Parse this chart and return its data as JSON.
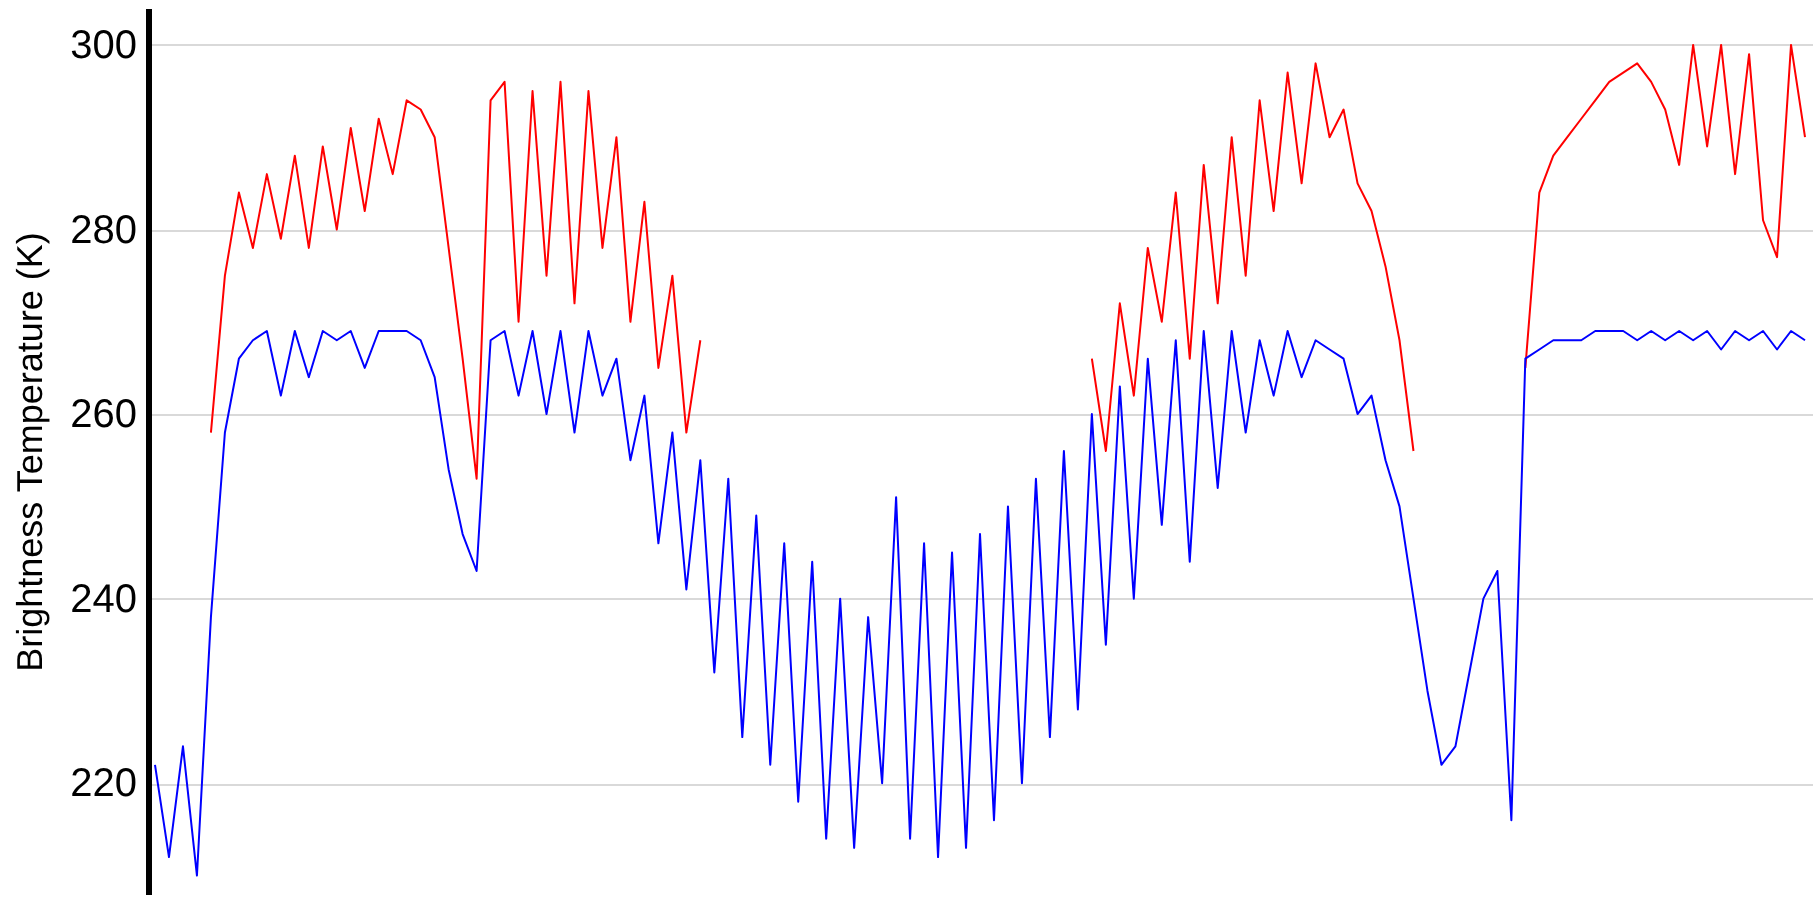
{
  "chart_data": {
    "type": "line",
    "ylabel": "Brightness Temperature (K)",
    "categories": [
      null,
      null,
      null,
      null,
      null,
      null,
      null,
      null,
      null,
      null,
      null,
      null,
      null,
      null,
      null,
      null,
      null,
      null,
      null,
      null,
      null,
      null,
      null,
      null,
      null,
      null,
      null,
      null,
      null,
      null,
      null,
      null,
      null,
      null,
      null,
      null,
      null,
      null,
      null,
      null,
      null,
      null,
      null,
      null,
      null,
      null,
      null,
      null,
      null,
      null,
      null,
      null,
      null,
      null,
      null,
      null,
      null,
      null,
      null,
      null,
      null,
      null,
      null,
      null,
      null,
      null,
      null,
      null,
      null,
      null,
      null,
      null,
      null,
      null,
      null,
      null,
      null,
      null,
      null,
      null,
      null,
      null,
      null,
      null,
      null,
      null,
      null,
      null,
      null,
      null,
      null,
      null,
      null,
      null,
      null,
      null,
      null,
      null,
      null,
      null,
      null,
      null,
      null,
      null,
      null,
      null,
      null,
      null,
      null,
      null,
      null,
      null,
      null,
      null,
      null,
      null,
      null,
      null,
      null
    ],
    "series": [
      {
        "color": "#ff0000",
        "values": [
          null,
          null,
          null,
          null,
          258,
          275,
          284,
          278,
          286,
          279,
          288,
          278,
          289,
          280,
          291,
          282,
          292,
          286,
          294,
          293,
          290,
          278,
          266,
          253,
          294,
          296,
          270,
          295,
          275,
          296,
          272,
          295,
          278,
          290,
          270,
          283,
          265,
          275,
          258,
          268,
          null,
          null,
          null,
          null,
          null,
          null,
          null,
          null,
          null,
          null,
          null,
          null,
          null,
          null,
          null,
          null,
          null,
          null,
          null,
          null,
          null,
          null,
          null,
          null,
          null,
          null,
          null,
          266,
          256,
          272,
          262,
          278,
          270,
          284,
          266,
          287,
          272,
          290,
          275,
          294,
          282,
          297,
          285,
          298,
          290,
          293,
          285,
          282,
          276,
          268,
          256,
          null,
          null,
          null,
          null,
          null,
          null,
          null,
          265,
          284,
          288,
          290,
          292,
          294,
          296,
          297,
          298,
          296,
          293,
          287,
          300,
          289,
          300,
          286,
          299,
          281,
          277,
          300,
          290
        ]
      },
      {
        "color": "#0000ff",
        "values": [
          222,
          212,
          224,
          210,
          238,
          258,
          266,
          268,
          269,
          262,
          269,
          264,
          269,
          268,
          269,
          265,
          269,
          269,
          269,
          268,
          264,
          254,
          247,
          243,
          268,
          269,
          262,
          269,
          260,
          269,
          258,
          269,
          262,
          266,
          255,
          262,
          246,
          258,
          241,
          255,
          232,
          253,
          225,
          249,
          222,
          246,
          218,
          244,
          214,
          240,
          213,
          238,
          220,
          251,
          214,
          246,
          212,
          245,
          213,
          247,
          216,
          250,
          220,
          253,
          225,
          256,
          228,
          260,
          235,
          263,
          240,
          266,
          248,
          268,
          244,
          269,
          252,
          269,
          258,
          268,
          262,
          269,
          264,
          268,
          267,
          266,
          260,
          262,
          255,
          250,
          240,
          230,
          222,
          224,
          232,
          240,
          243,
          216,
          266,
          267,
          268,
          268,
          268,
          269,
          269,
          269,
          268,
          269,
          268,
          269,
          268,
          269,
          267,
          269,
          268,
          269,
          267,
          269,
          268
        ]
      }
    ],
    "ylim": [
      208,
      304
    ],
    "yticks": [
      220,
      240,
      260,
      280,
      300
    ],
    "grid": "y",
    "tick_labels": "y",
    "marker": "none",
    "line_style": "solid"
  }
}
